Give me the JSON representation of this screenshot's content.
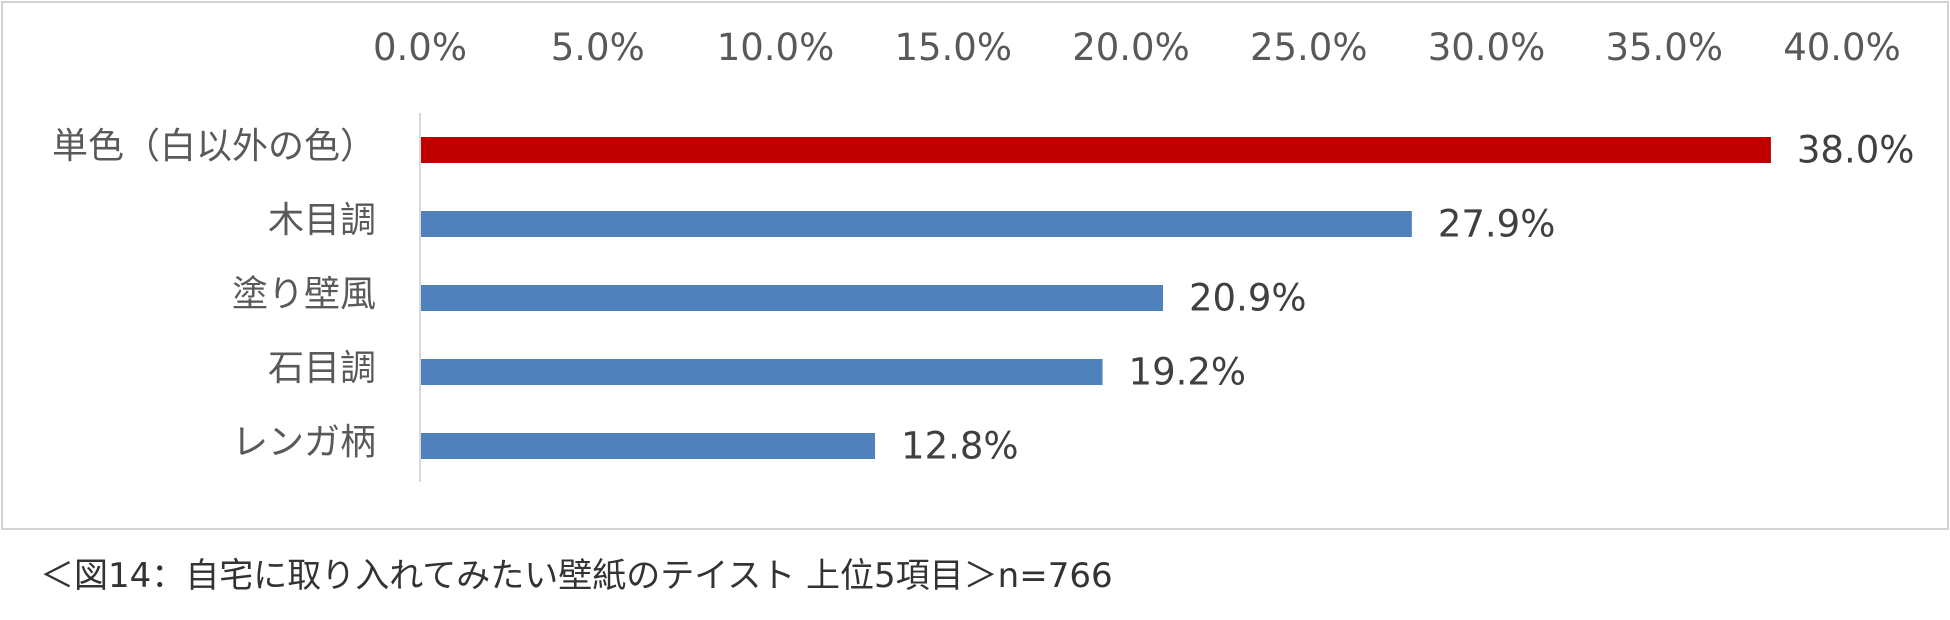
{
  "chart_data": {
    "type": "bar",
    "orientation": "horizontal",
    "categories": [
      "単色（白以外の色）",
      "木目調",
      "塗り壁風",
      "石目調",
      "レンガ柄"
    ],
    "values": [
      38.0,
      27.9,
      20.9,
      19.2,
      12.8
    ],
    "value_labels": [
      "38.0%",
      "27.9%",
      "20.9%",
      "19.2%",
      "12.8%"
    ],
    "bar_colors": [
      "#C00000",
      "#4F81BD",
      "#4F81BD",
      "#4F81BD",
      "#4F81BD"
    ],
    "x_ticks": [
      "0.0%",
      "5.0%",
      "10.0%",
      "15.0%",
      "20.0%",
      "25.0%",
      "30.0%",
      "35.0%",
      "40.0%"
    ],
    "xlim": [
      0,
      40
    ],
    "x_axis_position": "top",
    "grid": false,
    "legend": "none"
  },
  "caption": "＜図14：自宅に取り入れてみたい壁紙のテイスト 上位5項目＞n=766"
}
